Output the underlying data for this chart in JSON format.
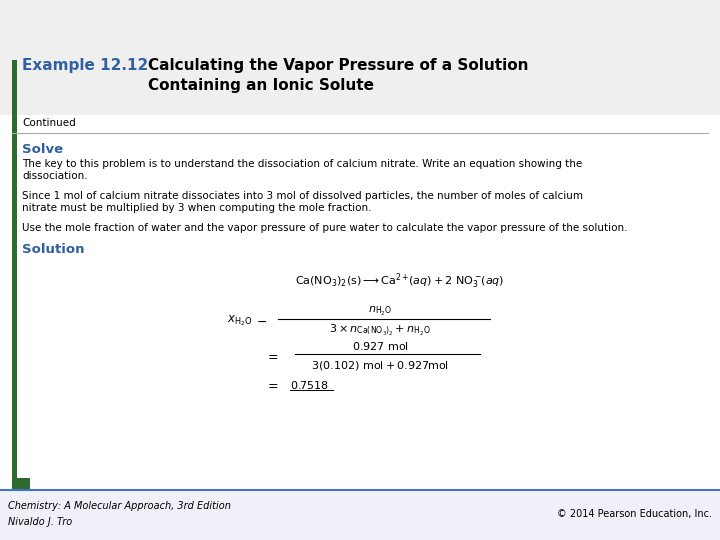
{
  "title_label": "Example 12.12",
  "title_text1": "Calculating the Vapor Pressure of a Solution",
  "title_text2": "Containing an Ionic Solute",
  "continued_text": "Continued",
  "solve_label": "Solve",
  "solve_text1": "The key to this problem is to understand the dissociation of calcium nitrate. Write an equation showing the",
  "solve_text2": "dissociation.",
  "solve_text3": "Since 1 mol of calcium nitrate dissociates into 3 mol of dissolved particles, the number of moles of calcium",
  "solve_text4": "nitrate must be multiplied by 3 when computing the mole fraction.",
  "solve_text5": "Use the mole fraction of water and the vapor pressure of pure water to calculate the vapor pressure of the solution.",
  "solution_label": "Solution",
  "footer_left1": "Chemistry: A Molecular Approach, 3rd Edition",
  "footer_left2": "Nivaldo J. Tro",
  "footer_right": "© 2014 Pearson Education, Inc.",
  "bg_color": "#ffffff",
  "green_color": "#2d6a2d",
  "blue_color": "#3060a0",
  "text_color": "#000000",
  "footer_line_color": "#4472c4",
  "left_bar_color": "#2d6a2d",
  "title_bg_color": "#efefef"
}
